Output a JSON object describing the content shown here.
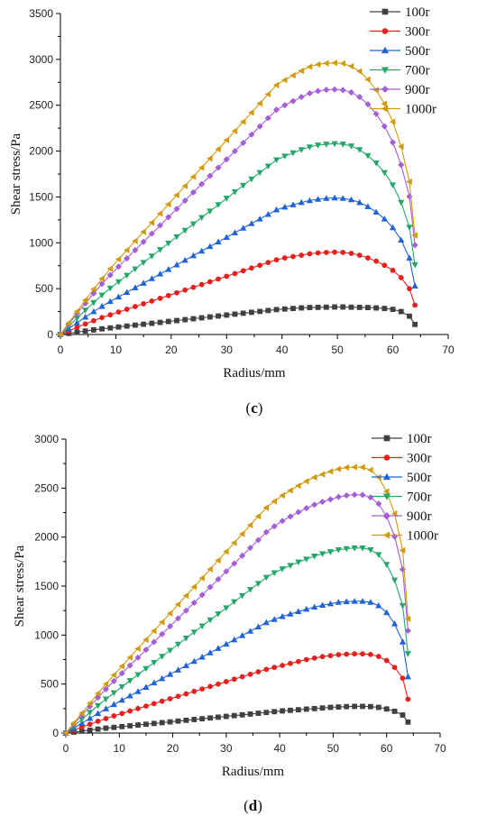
{
  "chart_data": [
    {
      "type": "line",
      "panel_label": "(c)",
      "panel_parts": [
        "(",
        "c",
        ")"
      ],
      "xlabel": "Radius/mm",
      "ylabel": "Shear stress/Pa",
      "xlim": [
        0,
        70
      ],
      "ylim": [
        0,
        3500
      ],
      "xticks": [
        "0",
        "10",
        "20",
        "30",
        "40",
        "50",
        "60",
        "70"
      ],
      "yticks": [
        "0",
        "500",
        "1000",
        "1500",
        "2000",
        "2500",
        "3000",
        "3500"
      ],
      "grid": false,
      "legend_position": "top-right",
      "x": [
        0,
        1.5,
        3,
        4.5,
        6,
        7.5,
        9,
        10.5,
        12,
        13.5,
        15,
        16.5,
        18,
        19.5,
        21,
        22.5,
        24,
        25.5,
        27,
        28.5,
        30,
        31.5,
        33,
        34.5,
        36,
        37.5,
        39,
        40.5,
        42,
        43.5,
        45,
        46.5,
        48,
        49.5,
        51,
        52.5,
        54,
        55.5,
        57,
        58.5,
        60,
        61.5,
        63,
        64
      ],
      "series": [
        {
          "name": "100r",
          "color": "#404040",
          "marker": "square",
          "values": [
            0,
            12,
            25,
            38,
            50,
            62,
            72,
            82,
            92,
            102,
            112,
            122,
            132,
            142,
            152,
            162,
            172,
            182,
            192,
            202,
            212,
            222,
            232,
            242,
            252,
            262,
            272,
            278,
            284,
            290,
            294,
            296,
            298,
            300,
            300,
            298,
            296,
            294,
            290,
            284,
            274,
            250,
            200,
            110
          ]
        },
        {
          "name": "300r",
          "color": "#e8201c",
          "marker": "circle",
          "values": [
            0,
            38,
            78,
            115,
            150,
            185,
            215,
            245,
            275,
            305,
            335,
            365,
            395,
            425,
            455,
            485,
            515,
            545,
            575,
            605,
            635,
            665,
            695,
            725,
            755,
            785,
            815,
            835,
            850,
            865,
            880,
            890,
            895,
            898,
            895,
            885,
            865,
            835,
            800,
            755,
            700,
            620,
            500,
            320
          ]
        },
        {
          "name": "500r",
          "color": "#1f63d6",
          "marker": "triangle-up",
          "values": [
            0,
            62,
            128,
            190,
            250,
            308,
            360,
            410,
            460,
            510,
            560,
            610,
            660,
            710,
            760,
            810,
            860,
            910,
            960,
            1010,
            1060,
            1110,
            1160,
            1210,
            1260,
            1310,
            1360,
            1390,
            1415,
            1440,
            1460,
            1475,
            1485,
            1490,
            1485,
            1470,
            1440,
            1395,
            1335,
            1260,
            1165,
            1030,
            835,
            530
          ]
        },
        {
          "name": "700r",
          "color": "#24a86a",
          "marker": "triangle-down",
          "values": [
            0,
            88,
            178,
            265,
            348,
            430,
            505,
            575,
            645,
            715,
            785,
            855,
            925,
            995,
            1065,
            1135,
            1205,
            1275,
            1345,
            1415,
            1485,
            1555,
            1625,
            1695,
            1765,
            1835,
            1905,
            1945,
            1980,
            2015,
            2045,
            2065,
            2075,
            2080,
            2075,
            2055,
            2015,
            1950,
            1870,
            1765,
            1630,
            1440,
            1170,
            760
          ]
        },
        {
          "name": "900r",
          "color": "#a55fd6",
          "marker": "diamond",
          "values": [
            0,
            112,
            228,
            340,
            448,
            552,
            648,
            740,
            830,
            920,
            1010,
            1100,
            1190,
            1280,
            1370,
            1460,
            1550,
            1640,
            1730,
            1820,
            1910,
            2000,
            2090,
            2180,
            2270,
            2360,
            2450,
            2500,
            2545,
            2590,
            2630,
            2655,
            2668,
            2672,
            2665,
            2640,
            2590,
            2510,
            2405,
            2270,
            2095,
            1850,
            1505,
            975
          ]
        },
        {
          "name": "1000r",
          "color": "#d29a0c",
          "marker": "triangle-left",
          "values": [
            0,
            125,
            252,
            375,
            495,
            610,
            718,
            820,
            920,
            1020,
            1120,
            1220,
            1320,
            1420,
            1520,
            1620,
            1720,
            1820,
            1920,
            2020,
            2120,
            2220,
            2320,
            2420,
            2520,
            2620,
            2720,
            2775,
            2825,
            2875,
            2920,
            2945,
            2958,
            2962,
            2955,
            2925,
            2870,
            2780,
            2665,
            2515,
            2320,
            2050,
            1665,
            1080
          ]
        }
      ]
    },
    {
      "type": "line",
      "panel_label": "(d)",
      "panel_parts": [
        "(",
        "d",
        ")"
      ],
      "xlabel": "Radius/mm",
      "ylabel": "Shear stress/Pa",
      "xlim": [
        0,
        70
      ],
      "ylim": [
        0,
        3000
      ],
      "xticks": [
        "0",
        "10",
        "20",
        "30",
        "40",
        "50",
        "60",
        "70"
      ],
      "yticks": [
        "0",
        "500",
        "1000",
        "1500",
        "2000",
        "2500",
        "3000"
      ],
      "grid": false,
      "legend_position": "top-right",
      "x": [
        0,
        1.5,
        3,
        4.5,
        6,
        7.5,
        9,
        10.5,
        12,
        13.5,
        15,
        16.5,
        18,
        19.5,
        21,
        22.5,
        24,
        25.5,
        27,
        28.5,
        30,
        31.5,
        33,
        34.5,
        36,
        37.5,
        39,
        40.5,
        42,
        43.5,
        45,
        46.5,
        48,
        49.5,
        51,
        52.5,
        54,
        55.5,
        57,
        58.5,
        60,
        61.5,
        63,
        64
      ],
      "series": [
        {
          "name": "100r",
          "color": "#404040",
          "marker": "square",
          "values": [
            0,
            10,
            20,
            30,
            40,
            50,
            58,
            66,
            74,
            82,
            90,
            98,
            106,
            114,
            122,
            130,
            138,
            146,
            154,
            162,
            170,
            178,
            186,
            194,
            202,
            210,
            218,
            226,
            232,
            238,
            244,
            250,
            256,
            262,
            266,
            270,
            272,
            272,
            270,
            262,
            246,
            222,
            184,
            112
          ]
        },
        {
          "name": "300r",
          "color": "#e8201c",
          "marker": "circle",
          "values": [
            0,
            30,
            60,
            90,
            120,
            148,
            175,
            200,
            225,
            250,
            275,
            300,
            325,
            350,
            375,
            400,
            425,
            450,
            475,
            500,
            525,
            550,
            575,
            600,
            625,
            650,
            670,
            690,
            710,
            730,
            750,
            765,
            780,
            790,
            800,
            805,
            808,
            808,
            802,
            782,
            740,
            670,
            560,
            345
          ]
        },
        {
          "name": "500r",
          "color": "#1f63d6",
          "marker": "triangle-up",
          "values": [
            0,
            50,
            100,
            150,
            200,
            248,
            292,
            336,
            380,
            424,
            468,
            512,
            556,
            600,
            644,
            688,
            732,
            776,
            820,
            864,
            908,
            952,
            996,
            1040,
            1084,
            1128,
            1160,
            1190,
            1215,
            1240,
            1265,
            1285,
            1305,
            1320,
            1335,
            1342,
            1345,
            1345,
            1335,
            1300,
            1230,
            1115,
            930,
            575
          ]
        },
        {
          "name": "700r",
          "color": "#24a86a",
          "marker": "triangle-down",
          "values": [
            0,
            70,
            140,
            210,
            280,
            347,
            410,
            472,
            534,
            596,
            658,
            720,
            782,
            844,
            906,
            968,
            1030,
            1092,
            1154,
            1216,
            1278,
            1340,
            1402,
            1464,
            1526,
            1588,
            1635,
            1675,
            1710,
            1745,
            1775,
            1805,
            1830,
            1850,
            1870,
            1882,
            1888,
            1888,
            1870,
            1820,
            1720,
            1560,
            1300,
            810
          ]
        },
        {
          "name": "900r",
          "color": "#a55fd6",
          "marker": "diamond",
          "values": [
            0,
            92,
            182,
            272,
            362,
            448,
            530,
            610,
            690,
            770,
            850,
            930,
            1010,
            1090,
            1170,
            1250,
            1330,
            1410,
            1490,
            1570,
            1650,
            1730,
            1810,
            1890,
            1970,
            2050,
            2110,
            2165,
            2210,
            2255,
            2295,
            2330,
            2360,
            2385,
            2410,
            2425,
            2432,
            2430,
            2405,
            2340,
            2210,
            2005,
            1670,
            1045
          ]
        },
        {
          "name": "1000r",
          "color": "#d29a0c",
          "marker": "triangle-left",
          "values": [
            0,
            102,
            204,
            304,
            404,
            500,
            592,
            682,
            772,
            862,
            952,
            1042,
            1132,
            1222,
            1312,
            1402,
            1492,
            1582,
            1672,
            1762,
            1852,
            1942,
            2032,
            2122,
            2212,
            2300,
            2365,
            2425,
            2475,
            2525,
            2570,
            2610,
            2640,
            2670,
            2695,
            2710,
            2715,
            2712,
            2685,
            2610,
            2465,
            2240,
            1865,
            1165
          ]
        }
      ]
    }
  ]
}
